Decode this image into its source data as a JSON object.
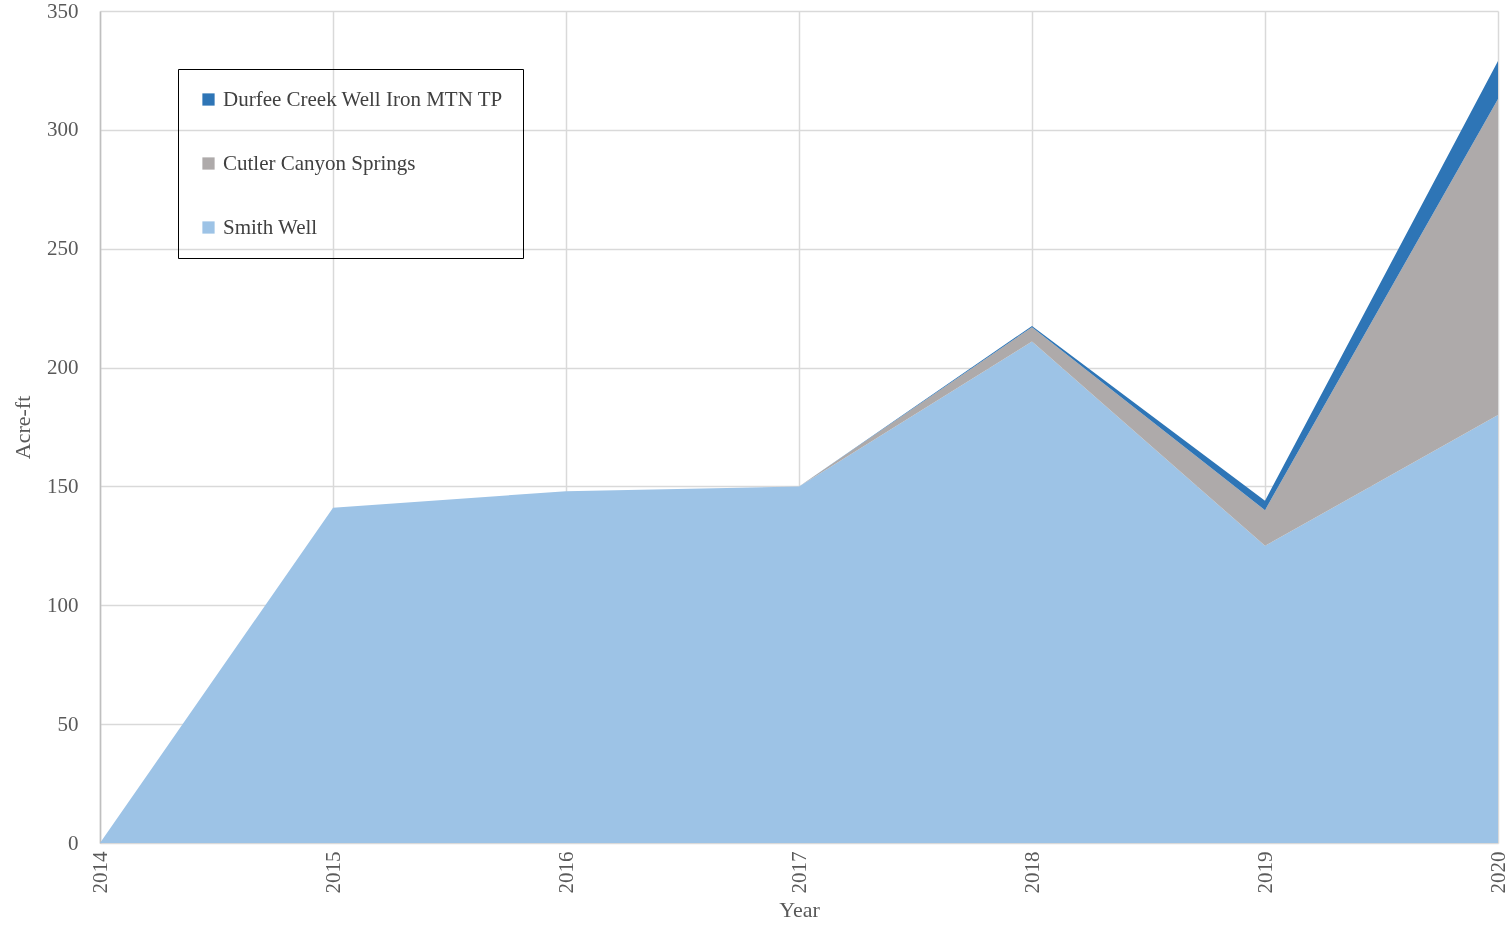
{
  "chart_data": {
    "type": "area",
    "stacked": true,
    "xlabel": "Year",
    "ylabel": "Acre-ft",
    "x": [
      2014,
      2015,
      2016,
      2017,
      2018,
      2019,
      2020
    ],
    "series": [
      {
        "name": "Smith Well",
        "color": "#9dc3e6",
        "values": [
          0,
          141,
          148,
          150,
          211,
          125,
          180
        ]
      },
      {
        "name": "Cutler Canyon Springs",
        "color": "#aeaaaa",
        "values": [
          0,
          0,
          0,
          0,
          6,
          15,
          133
        ]
      },
      {
        "name": "Durfee Creek Well Iron MTN TP",
        "color": "#2e75b6",
        "values": [
          0,
          0,
          0,
          0,
          0.5,
          4,
          16
        ]
      }
    ],
    "xlim": [
      2014,
      2020
    ],
    "xticks": [
      2014,
      2015,
      2016,
      2017,
      2018,
      2019,
      2020
    ],
    "ylim": [
      0,
      350
    ],
    "yticks": [
      0,
      50,
      100,
      150,
      200,
      250,
      300,
      350
    ],
    "grid": true,
    "legend": "top left"
  }
}
